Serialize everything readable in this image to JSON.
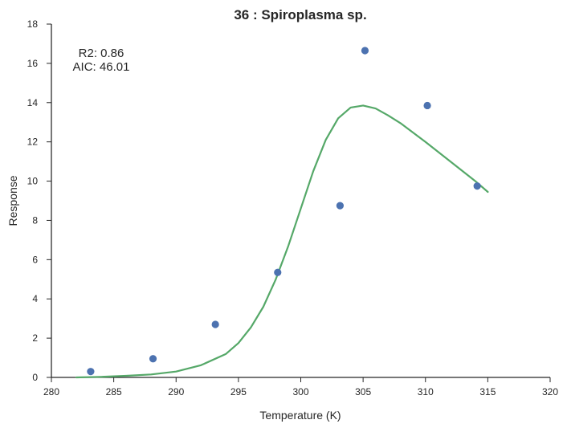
{
  "chart_data": {
    "type": "scatter",
    "title": "36 : Spiroplasma sp.",
    "xlabel": "Temperature (K)",
    "ylabel": "Response",
    "xlim": [
      280,
      320
    ],
    "ylim": [
      0,
      18
    ],
    "xticks": [
      280,
      285,
      290,
      295,
      300,
      305,
      310,
      315,
      320
    ],
    "yticks": [
      0,
      2,
      4,
      6,
      8,
      10,
      12,
      14,
      16,
      18
    ],
    "grid": false,
    "annotations": [
      "R2: 0.86",
      "AIC: 46.01"
    ],
    "series": [
      {
        "type": "scatter",
        "color": "#4c72b0",
        "x": [
          283.15,
          288.15,
          293.15,
          298.15,
          303.15,
          305.15,
          310.15,
          314.15
        ],
        "y": [
          0.3,
          0.95,
          2.7,
          5.35,
          8.75,
          16.65,
          13.85,
          9.75
        ]
      },
      {
        "type": "line",
        "color": "#55a868",
        "x": [
          282,
          284,
          286,
          288,
          290,
          292,
          294,
          295,
          296,
          297,
          298,
          299,
          300,
          301,
          302,
          303,
          304,
          305,
          306,
          307,
          308,
          310,
          312,
          314,
          315
        ],
        "y": [
          0.0,
          0.03,
          0.08,
          0.15,
          0.3,
          0.62,
          1.2,
          1.75,
          2.55,
          3.6,
          5.0,
          6.7,
          8.6,
          10.5,
          12.1,
          13.2,
          13.75,
          13.85,
          13.7,
          13.35,
          12.95,
          12.0,
          11.0,
          10.0,
          9.45
        ]
      }
    ]
  }
}
